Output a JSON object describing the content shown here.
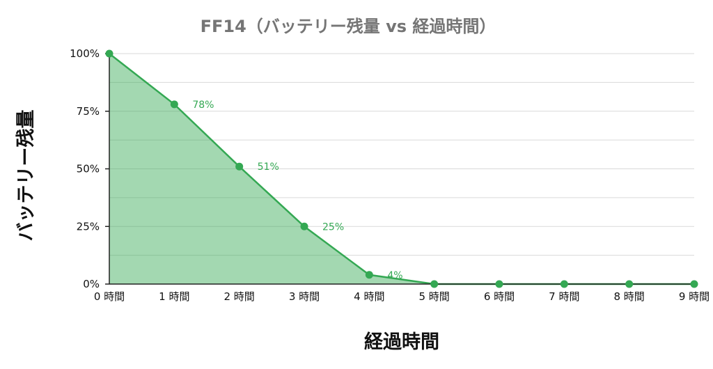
{
  "colors": {
    "series": "#34a853",
    "area": "#34a853",
    "grid": "#d9d9d9",
    "axis": "#222222"
  },
  "chart_data": {
    "type": "area",
    "title": "FF14（バッテリー残量 vs 経過時間）",
    "xlabel": "経過時間",
    "ylabel": "バッテリー残量",
    "categories": [
      "0 時間",
      "1 時間",
      "2 時間",
      "3 時間",
      "4 時間",
      "5 時間",
      "6 時間",
      "7 時間",
      "8 時間",
      "9 時間"
    ],
    "values": [
      100,
      78,
      51,
      25,
      4,
      0,
      0,
      0,
      0,
      0
    ],
    "data_labels": [
      "",
      "78%",
      "51%",
      "25%",
      "4%",
      "",
      "",
      "",
      "",
      ""
    ],
    "ylim": [
      0,
      100
    ],
    "yticks": [
      0,
      25,
      50,
      75,
      100
    ],
    "ytick_labels": [
      "0%",
      "25%",
      "50%",
      "75%",
      "100%"
    ],
    "grid": true,
    "legend": "none"
  }
}
